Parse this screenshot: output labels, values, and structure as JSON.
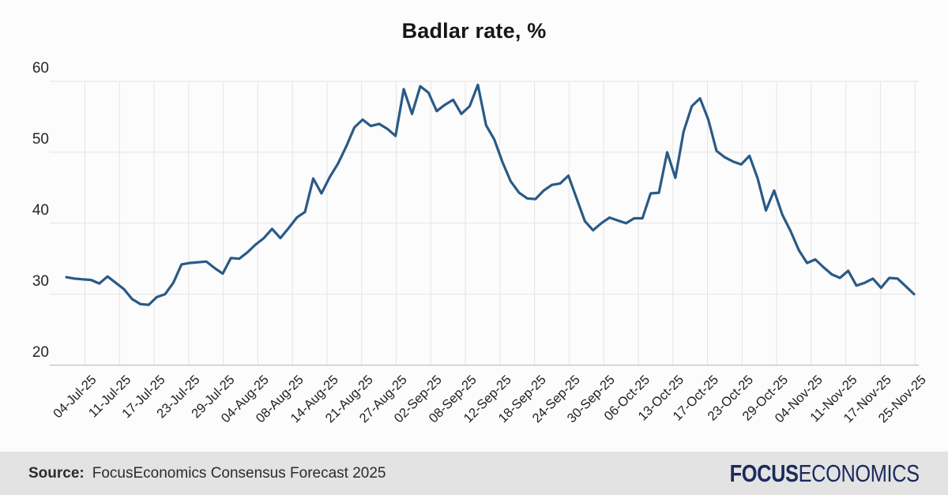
{
  "title": "Badlar rate, %",
  "footer": {
    "source_label": "Source:",
    "source_text": "FocusEconomics Consensus Forecast 2025",
    "logo_focus": "FOCUS",
    "logo_economics": "ECONOMICS"
  },
  "colors": {
    "page_bg": "#fcfcfc",
    "line": "#2a5a87",
    "grid": "#e4e4e4",
    "axis": "#c8c8c8",
    "title_text": "#161616",
    "tick_text": "#1f1f1f",
    "footer_bg": "#e3e3e3",
    "logo_navy": "#1b2a5e"
  },
  "chart_data": {
    "type": "line",
    "title": "Badlar rate, %",
    "unit": "%",
    "grid": true,
    "legend": false,
    "ylim": [
      20,
      60
    ],
    "y_ticks": [
      20,
      30,
      40,
      50,
      60
    ],
    "x_tick_labels": [
      "04-Jul-25",
      "11-Jul-25",
      "17-Jul-25",
      "23-Jul-25",
      "29-Jul-25",
      "04-Aug-25",
      "08-Aug-25",
      "14-Aug-25",
      "21-Aug-25",
      "27-Aug-25",
      "02-Sep-25",
      "08-Sep-25",
      "12-Sep-25",
      "18-Sep-25",
      "24-Sep-25",
      "30-Sep-25",
      "06-Oct-25",
      "13-Oct-25",
      "17-Oct-25",
      "23-Oct-25",
      "29-Oct-25",
      "04-Nov-25",
      "11-Nov-25",
      "17-Nov-25",
      "25-Nov-25"
    ],
    "series": [
      {
        "name": "Badlar rate",
        "frequency": "daily (business days)",
        "values": [
          32.4,
          32.2,
          32.1,
          32.0,
          31.5,
          32.5,
          31.6,
          30.7,
          29.3,
          28.6,
          28.5,
          29.6,
          30.0,
          31.6,
          34.2,
          34.4,
          34.5,
          34.6,
          33.7,
          32.9,
          35.1,
          35.0,
          35.9,
          37.0,
          37.9,
          39.2,
          37.9,
          39.3,
          40.8,
          41.6,
          46.3,
          44.2,
          46.5,
          48.4,
          50.8,
          53.5,
          54.6,
          53.7,
          54.0,
          53.3,
          52.3,
          58.9,
          55.4,
          59.3,
          58.4,
          55.8,
          56.7,
          57.4,
          55.4,
          56.5,
          59.5,
          53.8,
          51.8,
          48.6,
          45.9,
          44.3,
          43.5,
          43.4,
          44.6,
          45.4,
          45.6,
          46.7,
          43.5,
          40.3,
          39.0,
          40.0,
          40.8,
          40.4,
          40.0,
          40.7,
          40.7,
          44.2,
          44.3,
          50.0,
          46.4,
          52.9,
          56.5,
          57.6,
          54.6,
          50.2,
          49.3,
          48.7,
          48.3,
          49.5,
          46.3,
          41.8,
          44.6,
          41.2,
          38.9,
          36.2,
          34.4,
          34.9,
          33.8,
          32.8,
          32.3,
          33.3,
          31.2,
          31.6,
          32.2,
          30.9,
          32.3,
          32.2,
          31.1,
          30.0
        ]
      }
    ]
  }
}
